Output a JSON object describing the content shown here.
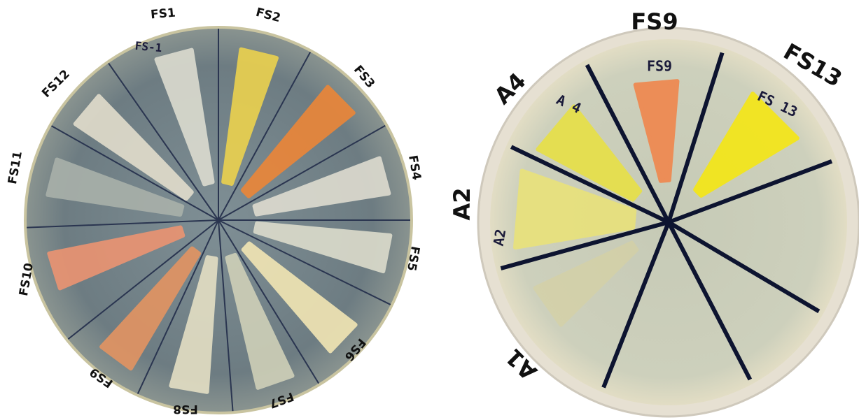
{
  "left_plate": {
    "labels": [
      "FS1",
      "FS2",
      "FS3",
      "FS4",
      "FS5",
      "FS6",
      "FS7",
      "FS8",
      "FS9",
      "FS10",
      "FS11",
      "FS12"
    ],
    "handwritten": [
      "FS-1"
    ]
  },
  "right_plate": {
    "labels": [
      "FS9",
      "FS13",
      "A4",
      "A2",
      "A1"
    ],
    "handwritten": [
      "FS9",
      "FS 13",
      "A 4",
      "A2"
    ]
  }
}
